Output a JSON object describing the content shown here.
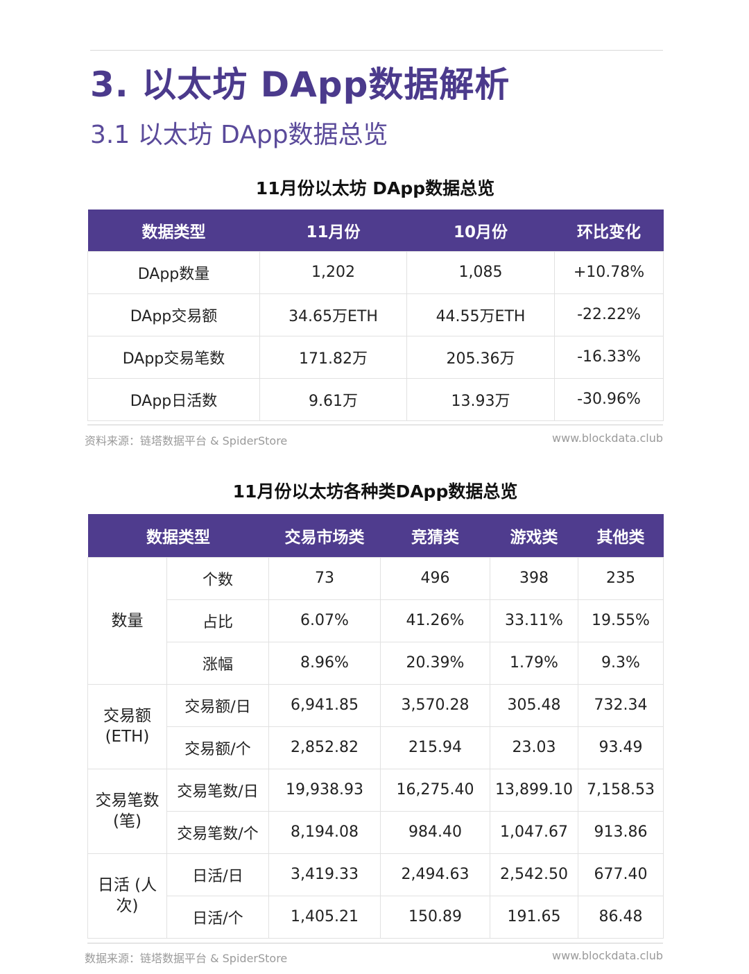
{
  "heading": {
    "title": "3. 以太坊 DApp数据解析",
    "subtitle": "3.1 以太坊 DApp数据总览"
  },
  "table1": {
    "title": "11月份以太坊 DApp数据总览",
    "headers": [
      "数据类型",
      "11月份",
      "10月份",
      "环比变化"
    ],
    "rows": [
      [
        "DApp数量",
        "1,202",
        "1,085",
        "+10.78%"
      ],
      [
        "DApp交易额",
        "34.65万ETH",
        "44.55万ETH",
        "-22.22%"
      ],
      [
        "DApp交易笔数",
        "171.82万",
        "205.36万",
        "-16.33%"
      ],
      [
        "DApp日活数",
        "9.61万",
        "13.93万",
        "-30.96%"
      ]
    ],
    "source": "资料来源：链塔数据平台 & SpiderStore",
    "site": "www.blockdata.club"
  },
  "table2": {
    "title": "11月份以太坊各种类DApp数据总览",
    "headers": [
      "数据类型",
      "交易市场类",
      "竞猜类",
      "游戏类",
      "其他类"
    ],
    "groups": [
      {
        "label": "数量",
        "rows": [
          [
            "个数",
            "73",
            "496",
            "398",
            "235"
          ],
          [
            "占比",
            "6.07%",
            "41.26%",
            "33.11%",
            "19.55%"
          ],
          [
            "涨幅",
            "8.96%",
            "20.39%",
            "1.79%",
            "9.3%"
          ]
        ]
      },
      {
        "label": "交易额 (ETH)",
        "rows": [
          [
            "交易额/日",
            "6,941.85",
            "3,570.28",
            "305.48",
            "732.34"
          ],
          [
            "交易额/个",
            "2,852.82",
            "215.94",
            "23.03",
            "93.49"
          ]
        ]
      },
      {
        "label": "交易笔数 (笔)",
        "rows": [
          [
            "交易笔数/日",
            "19,938.93",
            "16,275.40",
            "13,899.10",
            "7,158.53"
          ],
          [
            "交易笔数/个",
            "8,194.08",
            "984.40",
            "1,047.67",
            "913.86"
          ]
        ]
      },
      {
        "label": "日活 (人次)",
        "rows": [
          [
            "日活/日",
            "3,419.33",
            "2,494.63",
            "2,542.50",
            "677.40"
          ],
          [
            "日活/个",
            "1,405.21",
            "150.89",
            "191.65",
            "86.48"
          ]
        ]
      }
    ],
    "source": "数据来源：链塔数据平台 & SpiderStore",
    "site": "www.blockdata.club"
  }
}
